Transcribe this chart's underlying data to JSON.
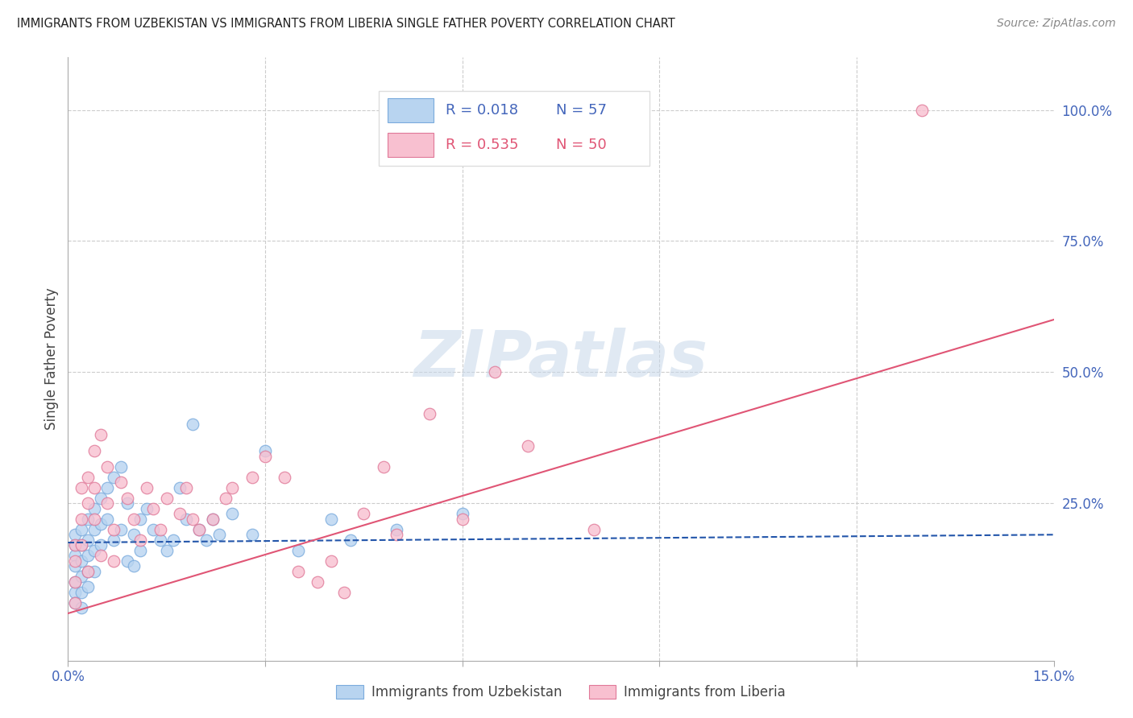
{
  "title": "IMMIGRANTS FROM UZBEKISTAN VS IMMIGRANTS FROM LIBERIA SINGLE FATHER POVERTY CORRELATION CHART",
  "source": "Source: ZipAtlas.com",
  "ylabel": "Single Father Poverty",
  "xlim": [
    0,
    0.15
  ],
  "ylim": [
    -0.05,
    1.1
  ],
  "xtick_vals": [
    0.0,
    0.03,
    0.06,
    0.09,
    0.12,
    0.15
  ],
  "xtick_labels": [
    "0.0%",
    "",
    "",
    "",
    "",
    "15.0%"
  ],
  "ytick_positions_right": [
    0.25,
    0.5,
    0.75,
    1.0
  ],
  "ytick_labels_right": [
    "25.0%",
    "50.0%",
    "75.0%",
    "100.0%"
  ],
  "grid_color": "#cccccc",
  "background_color": "#ffffff",
  "axis_label_color": "#4466bb",
  "uzbekistan": {
    "color": "#b8d4f0",
    "edge_color": "#7aabdd",
    "R": 0.018,
    "N": 57,
    "label": "Immigrants from Uzbekistan",
    "trend_color": "#2255aa",
    "trend_style": "--",
    "x": [
      0.001,
      0.001,
      0.001,
      0.001,
      0.001,
      0.001,
      0.001,
      0.002,
      0.002,
      0.002,
      0.002,
      0.002,
      0.002,
      0.003,
      0.003,
      0.003,
      0.003,
      0.003,
      0.004,
      0.004,
      0.004,
      0.004,
      0.005,
      0.005,
      0.005,
      0.006,
      0.006,
      0.007,
      0.007,
      0.008,
      0.008,
      0.009,
      0.009,
      0.01,
      0.01,
      0.011,
      0.011,
      0.012,
      0.013,
      0.014,
      0.015,
      0.016,
      0.017,
      0.018,
      0.019,
      0.02,
      0.021,
      0.022,
      0.023,
      0.025,
      0.028,
      0.03,
      0.035,
      0.04,
      0.043,
      0.05,
      0.06
    ],
    "y": [
      0.17,
      0.15,
      0.19,
      0.13,
      0.1,
      0.08,
      0.06,
      0.2,
      0.17,
      0.14,
      0.11,
      0.08,
      0.05,
      0.22,
      0.18,
      0.15,
      0.12,
      0.09,
      0.24,
      0.2,
      0.16,
      0.12,
      0.26,
      0.21,
      0.17,
      0.28,
      0.22,
      0.3,
      0.18,
      0.32,
      0.2,
      0.25,
      0.14,
      0.19,
      0.13,
      0.22,
      0.16,
      0.24,
      0.2,
      0.18,
      0.16,
      0.18,
      0.28,
      0.22,
      0.4,
      0.2,
      0.18,
      0.22,
      0.19,
      0.23,
      0.19,
      0.35,
      0.16,
      0.22,
      0.18,
      0.2,
      0.23
    ],
    "trend_x": [
      0.0,
      0.15
    ],
    "trend_y": [
      0.175,
      0.19
    ]
  },
  "liberia": {
    "color": "#f8c0d0",
    "edge_color": "#e07898",
    "R": 0.535,
    "N": 50,
    "label": "Immigrants from Liberia",
    "trend_color": "#e05575",
    "trend_style": "-",
    "x": [
      0.001,
      0.001,
      0.001,
      0.001,
      0.002,
      0.002,
      0.002,
      0.003,
      0.003,
      0.003,
      0.004,
      0.004,
      0.004,
      0.005,
      0.005,
      0.006,
      0.006,
      0.007,
      0.007,
      0.008,
      0.009,
      0.01,
      0.011,
      0.012,
      0.013,
      0.014,
      0.015,
      0.017,
      0.018,
      0.019,
      0.02,
      0.022,
      0.024,
      0.025,
      0.028,
      0.03,
      0.033,
      0.035,
      0.038,
      0.04,
      0.042,
      0.045,
      0.048,
      0.05,
      0.055,
      0.06,
      0.065,
      0.07,
      0.08,
      0.13
    ],
    "y": [
      0.17,
      0.14,
      0.1,
      0.06,
      0.28,
      0.22,
      0.17,
      0.3,
      0.25,
      0.12,
      0.35,
      0.28,
      0.22,
      0.38,
      0.15,
      0.32,
      0.25,
      0.2,
      0.14,
      0.29,
      0.26,
      0.22,
      0.18,
      0.28,
      0.24,
      0.2,
      0.26,
      0.23,
      0.28,
      0.22,
      0.2,
      0.22,
      0.26,
      0.28,
      0.3,
      0.34,
      0.3,
      0.12,
      0.1,
      0.14,
      0.08,
      0.23,
      0.32,
      0.19,
      0.42,
      0.22,
      0.5,
      0.36,
      0.2,
      1.0
    ],
    "trend_x": [
      0.0,
      0.15
    ],
    "trend_y": [
      0.04,
      0.6
    ]
  },
  "watermark_color": "#c8d8ea",
  "watermark_alpha": 0.55
}
